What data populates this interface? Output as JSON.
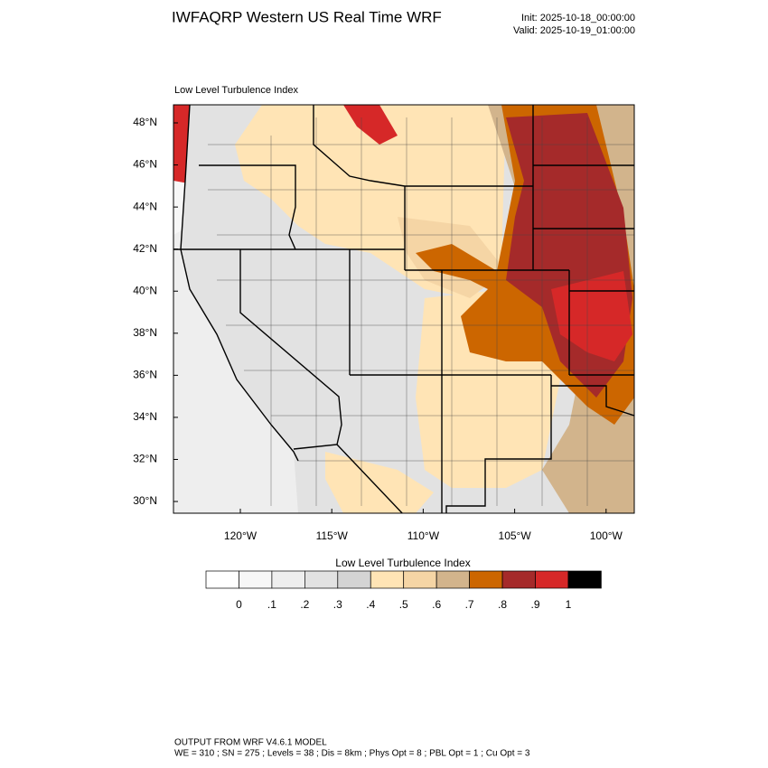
{
  "header": {
    "title": "IWFAQRP Western US Real Time WRF",
    "init": "Init: 2025-10-18_00:00:00",
    "valid": "Valid: 2025-10-19_01:00:00"
  },
  "map": {
    "panel_label": "Low Level Turbulence Index",
    "lat_ticks": [
      {
        "value": 30,
        "label": "30°N"
      },
      {
        "value": 32,
        "label": "32°N"
      },
      {
        "value": 34,
        "label": "34°N"
      },
      {
        "value": 36,
        "label": "36°N"
      },
      {
        "value": 38,
        "label": "38°N"
      },
      {
        "value": 40,
        "label": "40°N"
      },
      {
        "value": 42,
        "label": "42°N"
      },
      {
        "value": 44,
        "label": "44°N"
      },
      {
        "value": 46,
        "label": "46°N"
      },
      {
        "value": 48,
        "label": "48°N"
      }
    ],
    "lon_ticks": [
      {
        "value": -120,
        "label": "120°W"
      },
      {
        "value": -115,
        "label": "115°W"
      },
      {
        "value": -110,
        "label": "110°W"
      },
      {
        "value": -105,
        "label": "105°W"
      },
      {
        "value": -100,
        "label": "100°W"
      }
    ]
  },
  "colorbar": {
    "title": "Low Level Turbulence Index",
    "colors": [
      "#ffffff",
      "#f7f7f7",
      "#eeeeee",
      "#e2e2e2",
      "#d4d4d4",
      "#ffe4b5",
      "#f5d5a5",
      "#d2b48c",
      "#cc6600",
      "#a52a2a",
      "#d62828",
      "#000000"
    ],
    "labels": [
      0,
      {
        "value": 0.1,
        "label": ".1"
      },
      {
        "value": 0.2,
        "label": ".2"
      },
      {
        "value": 0.3,
        "label": ".3"
      },
      {
        "value": 0.4,
        "label": ".4"
      },
      {
        "value": 0.5,
        "label": ".5"
      },
      {
        "value": 0.6,
        "label": ".6"
      },
      {
        "value": 0.7,
        "label": ".7"
      },
      {
        "value": 0.8,
        "label": ".8"
      },
      {
        "value": 0.9,
        "label": ".9"
      },
      1
    ]
  },
  "footer": {
    "line1": "OUTPUT FROM WRF V4.6.1 MODEL",
    "line2": "WE = 310 ; SN = 275 ; Levels = 38 ; Dis = 8km ; Phys Opt = 8 ; PBL Opt = 1 ; Cu Opt = 3"
  }
}
